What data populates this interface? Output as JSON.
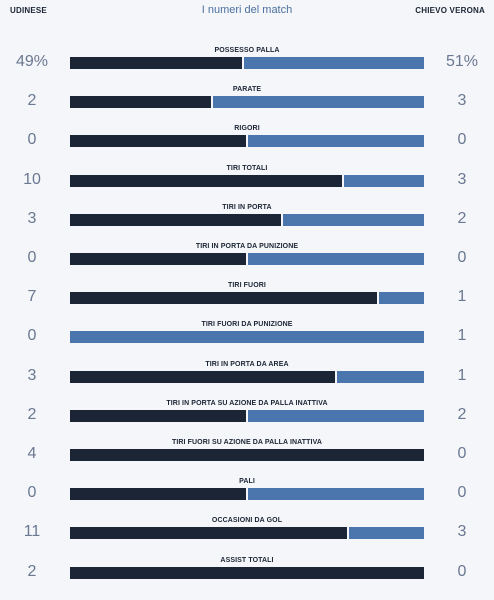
{
  "header": {
    "home_team": "UDINESE",
    "title": "I numeri del match",
    "away_team": "CHIEVO VERONA"
  },
  "colors": {
    "background": "#f4f6f9",
    "home_bar": "#1c2535",
    "away_bar": "#4a76ad",
    "value_text": "#6a7891",
    "title_text": "#4b6fa0"
  },
  "stats": [
    {
      "label": "POSSESSO PALLA",
      "home": "49%",
      "away": "51%",
      "home_share": 0.49
    },
    {
      "label": "PARATE",
      "home": "2",
      "away": "3",
      "home_share": 0.4
    },
    {
      "label": "RIGORI",
      "home": "0",
      "away": "0",
      "home_share": 0.5
    },
    {
      "label": "TIRI TOTALI",
      "home": "10",
      "away": "3",
      "home_share": 0.77
    },
    {
      "label": "TIRI IN PORTA",
      "home": "3",
      "away": "2",
      "home_share": 0.6
    },
    {
      "label": "TIRI IN PORTA DA PUNIZIONE",
      "home": "0",
      "away": "0",
      "home_share": 0.5
    },
    {
      "label": "TIRI FUORI",
      "home": "7",
      "away": "1",
      "home_share": 0.87
    },
    {
      "label": "TIRI FUORI DA PUNIZIONE",
      "home": "0",
      "away": "1",
      "home_share": 0.0
    },
    {
      "label": "TIRI IN PORTA DA AREA",
      "home": "3",
      "away": "1",
      "home_share": 0.75
    },
    {
      "label": "TIRI IN PORTA SU AZIONE DA PALLA INATTIVA",
      "home": "2",
      "away": "2",
      "home_share": 0.5
    },
    {
      "label": "TIRI FUORI SU AZIONE DA PALLA INATTIVA",
      "home": "4",
      "away": "0",
      "home_share": 1.0
    },
    {
      "label": "PALI",
      "home": "0",
      "away": "0",
      "home_share": 0.5
    },
    {
      "label": "OCCASIONI DA GOL",
      "home": "11",
      "away": "3",
      "home_share": 0.786
    },
    {
      "label": "ASSIST TOTALI",
      "home": "2",
      "away": "0",
      "home_share": 1.0
    }
  ]
}
